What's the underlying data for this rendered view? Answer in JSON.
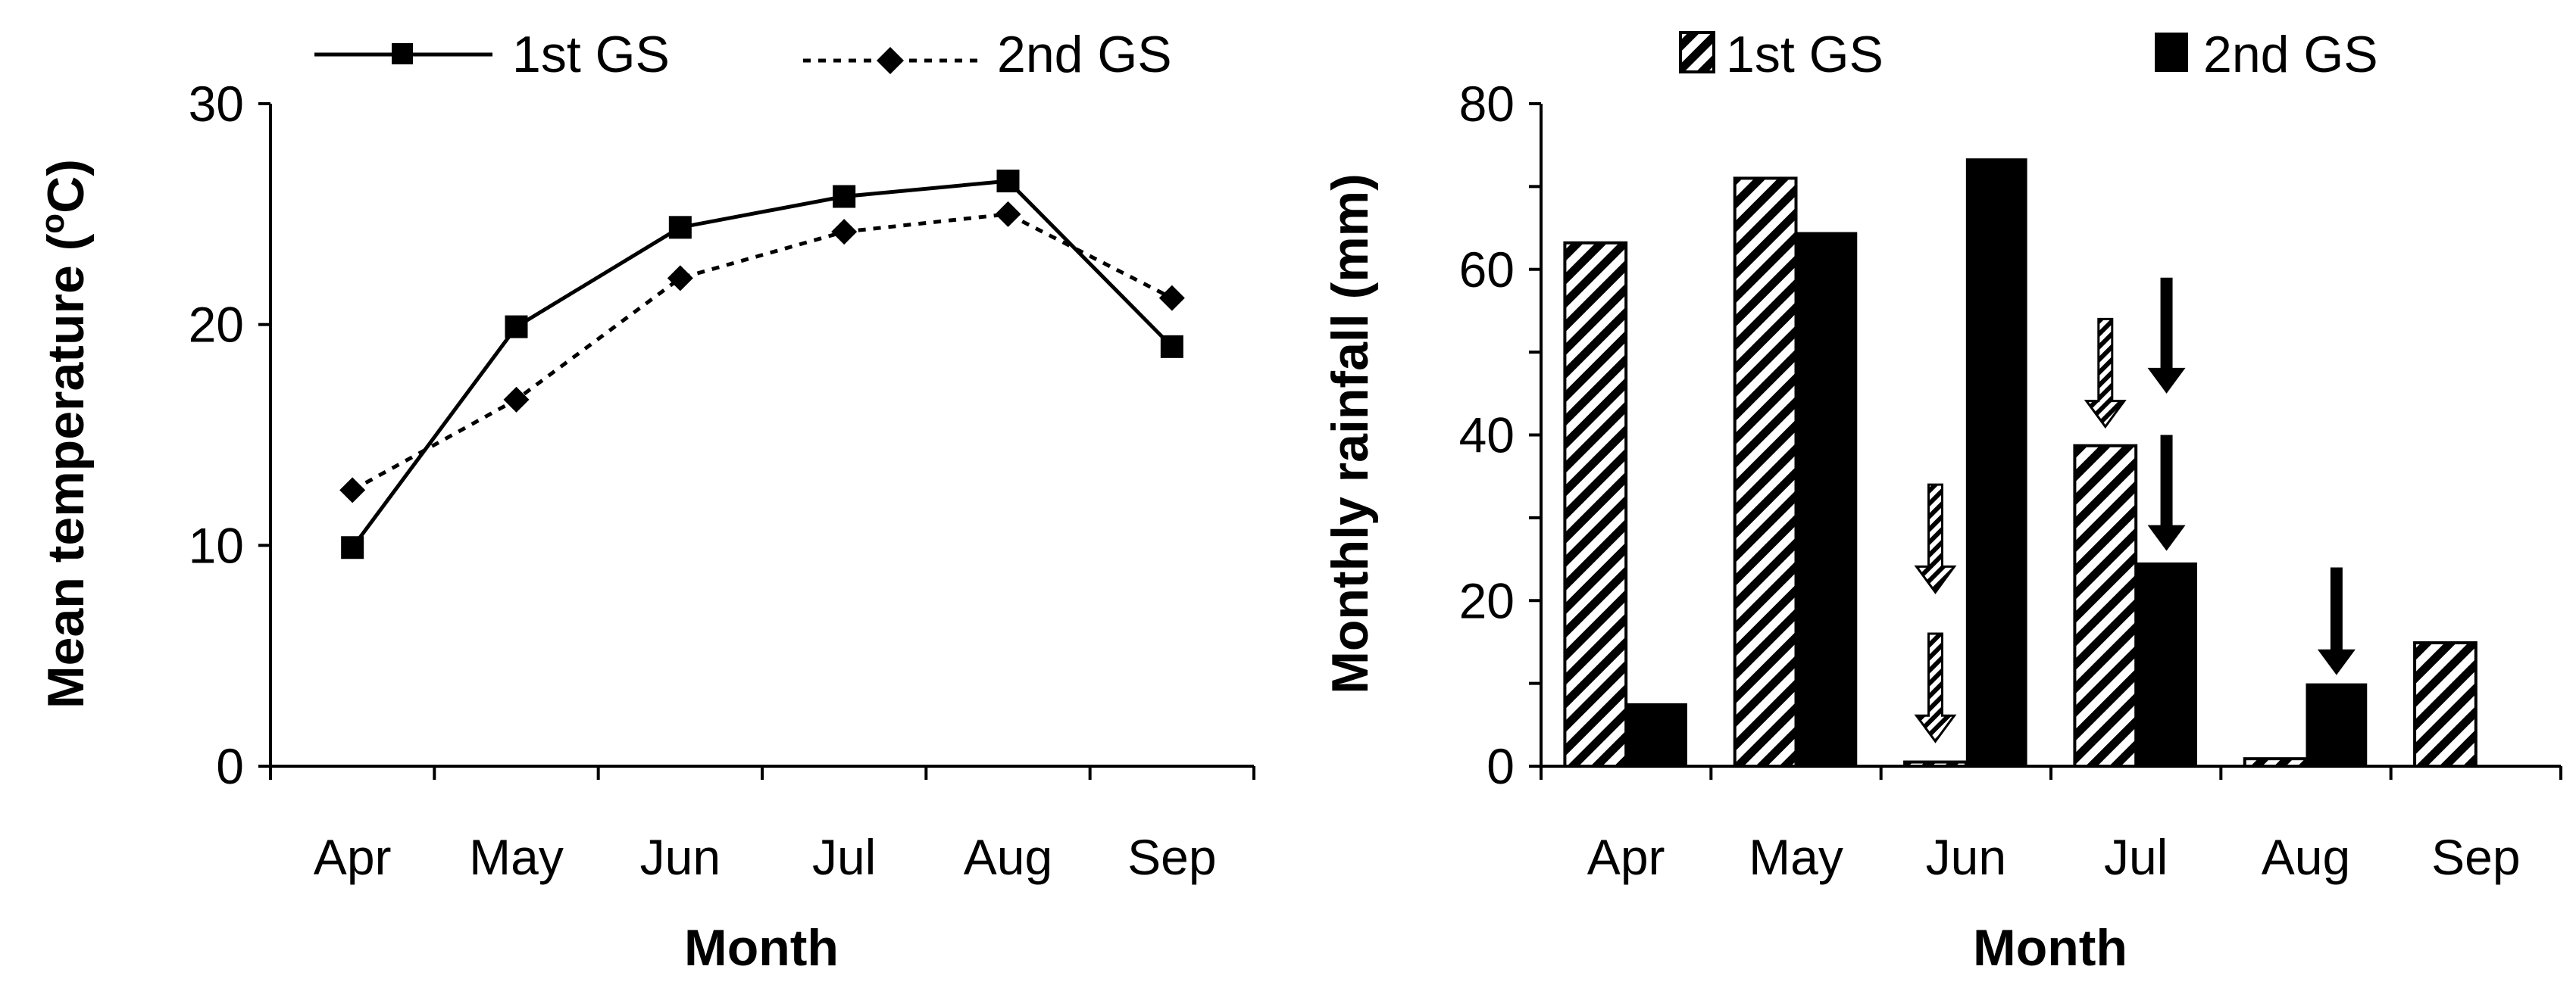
{
  "chart_data": [
    {
      "type": "line",
      "categories": [
        "Apr",
        "May",
        "Jun",
        "Jul",
        "Aug",
        "Sep"
      ],
      "series": [
        {
          "name": "1st GS",
          "values": [
            9.9,
            19.9,
            24.4,
            25.8,
            26.5,
            19.0
          ],
          "line": "solid",
          "marker": "square"
        },
        {
          "name": "2nd GS",
          "values": [
            12.5,
            16.6,
            22.1,
            24.2,
            25.0,
            21.2
          ],
          "line": "dotted",
          "marker": "diamond"
        }
      ],
      "title": "",
      "xlabel": "Month",
      "ylabel": "Mean temperature (°C)",
      "ylabel_parts": {
        "pre": "Mean temperature (",
        "sup": "o",
        "post": "C)"
      },
      "ylim": [
        0,
        30
      ],
      "yticks": [
        "0",
        "10",
        "20",
        "30"
      ],
      "legend": "top",
      "grid": false
    },
    {
      "type": "bar",
      "categories": [
        "Apr",
        "May",
        "Jun",
        "Jul",
        "Aug",
        "Sep"
      ],
      "series": [
        {
          "name": "1st GS",
          "values": [
            63.2,
            71.0,
            0.5,
            38.7,
            0.9,
            14.9
          ],
          "fill": "hatched"
        },
        {
          "name": "2nd GS",
          "values": [
            7.6,
            64.5,
            73.4,
            24.6,
            10.0,
            null
          ],
          "fill": "black"
        }
      ],
      "annotations": [
        {
          "type": "arrow",
          "style": "hatched",
          "category": "Jun",
          "series": "1st GS",
          "from_value": 34,
          "to_value": 21
        },
        {
          "type": "arrow",
          "style": "hatched",
          "category": "Jun",
          "series": "1st GS",
          "from_value": 16,
          "to_value": 3
        },
        {
          "type": "arrow",
          "style": "hatched",
          "category": "Jul",
          "series": "1st GS",
          "from_value": 54,
          "to_value": 41
        },
        {
          "type": "arrow",
          "style": "solid",
          "category": "Jul",
          "series": "2nd GS",
          "from_value": 59,
          "to_value": 45
        },
        {
          "type": "arrow",
          "style": "solid",
          "category": "Jul",
          "series": "2nd GS",
          "from_value": 40,
          "to_value": 26
        },
        {
          "type": "arrow",
          "style": "solid",
          "category": "Aug",
          "series": "2nd GS",
          "from_value": 24,
          "to_value": 11
        }
      ],
      "title": "",
      "xlabel": "Month",
      "ylabel": "Monthly rainfall (mm)",
      "ylim": [
        0,
        80
      ],
      "yticks": [
        "0",
        "20",
        "40",
        "60",
        "80"
      ],
      "legend": "top",
      "grid": false
    }
  ]
}
